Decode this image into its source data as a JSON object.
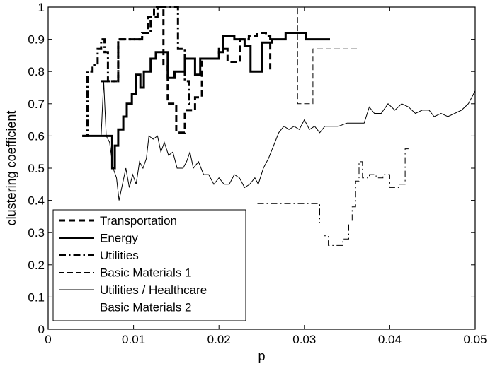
{
  "chart_data": {
    "type": "line",
    "title": "",
    "xlabel": "p",
    "ylabel": "clustering coefficient",
    "xlim": [
      0,
      0.05
    ],
    "ylim": [
      0,
      1
    ],
    "grid": false,
    "legend_position": "bottom-left",
    "x_ticks": [
      0,
      0.01,
      0.02,
      0.03,
      0.04,
      0.05
    ],
    "x_tick_labels": [
      "0",
      "0.01",
      "0.02",
      "0.03",
      "0.04",
      "0.05"
    ],
    "y_ticks": [
      0,
      0.1,
      0.2,
      0.3,
      0.4,
      0.5,
      0.6,
      0.7,
      0.8,
      0.9,
      1
    ],
    "y_tick_labels": [
      "0",
      "0.1",
      "0.2",
      "0.3",
      "0.4",
      "0.5",
      "0.6",
      "0.7",
      "0.8",
      "0.9",
      "1"
    ],
    "series": [
      {
        "name": "Transportation",
        "style": "dashed-thick",
        "points": [
          [
            0.0062,
            0.77
          ],
          [
            0.0082,
            0.77
          ],
          [
            0.0082,
            0.9
          ],
          [
            0.011,
            0.9
          ],
          [
            0.011,
            0.92
          ],
          [
            0.0117,
            0.92
          ],
          [
            0.0117,
            0.97
          ],
          [
            0.0124,
            0.97
          ],
          [
            0.0124,
            1.0
          ],
          [
            0.0135,
            1.0
          ],
          [
            0.0135,
            0.82
          ],
          [
            0.014,
            0.82
          ],
          [
            0.014,
            0.7
          ],
          [
            0.015,
            0.7
          ],
          [
            0.015,
            0.61
          ],
          [
            0.016,
            0.61
          ],
          [
            0.016,
            0.68
          ],
          [
            0.0172,
            0.68
          ],
          [
            0.0172,
            0.72
          ],
          [
            0.018,
            0.72
          ],
          [
            0.018,
            0.84
          ],
          [
            0.02,
            0.84
          ],
          [
            0.02,
            0.87
          ],
          [
            0.021,
            0.87
          ],
          [
            0.021,
            0.83
          ],
          [
            0.0225,
            0.83
          ],
          [
            0.0225,
            0.9
          ],
          [
            0.0235,
            0.9
          ],
          [
            0.0235,
            0.91
          ],
          [
            0.0245,
            0.91
          ],
          [
            0.0245,
            0.92
          ],
          [
            0.0255,
            0.92
          ],
          [
            0.0255,
            0.91
          ],
          [
            0.026,
            0.91
          ],
          [
            0.026,
            0.8
          ]
        ]
      },
      {
        "name": "Energy",
        "style": "solid-thick",
        "points": [
          [
            0.004,
            0.6
          ],
          [
            0.0075,
            0.6
          ],
          [
            0.0075,
            0.5
          ],
          [
            0.0078,
            0.5
          ],
          [
            0.0078,
            0.57
          ],
          [
            0.0082,
            0.57
          ],
          [
            0.0082,
            0.62
          ],
          [
            0.0088,
            0.62
          ],
          [
            0.0088,
            0.66
          ],
          [
            0.0092,
            0.66
          ],
          [
            0.0092,
            0.7
          ],
          [
            0.0098,
            0.7
          ],
          [
            0.0098,
            0.73
          ],
          [
            0.0103,
            0.73
          ],
          [
            0.0103,
            0.79
          ],
          [
            0.0108,
            0.79
          ],
          [
            0.0108,
            0.75
          ],
          [
            0.0112,
            0.75
          ],
          [
            0.0112,
            0.8
          ],
          [
            0.012,
            0.8
          ],
          [
            0.012,
            0.84
          ],
          [
            0.0126,
            0.84
          ],
          [
            0.0126,
            0.86
          ],
          [
            0.014,
            0.86
          ],
          [
            0.014,
            0.78
          ],
          [
            0.0148,
            0.78
          ],
          [
            0.0148,
            0.8
          ],
          [
            0.016,
            0.8
          ],
          [
            0.016,
            0.84
          ],
          [
            0.0172,
            0.84
          ],
          [
            0.0172,
            0.79
          ],
          [
            0.0178,
            0.79
          ],
          [
            0.0178,
            0.84
          ],
          [
            0.02,
            0.84
          ],
          [
            0.02,
            0.86
          ],
          [
            0.0205,
            0.86
          ],
          [
            0.0205,
            0.91
          ],
          [
            0.0218,
            0.91
          ],
          [
            0.0218,
            0.9
          ],
          [
            0.023,
            0.9
          ],
          [
            0.023,
            0.88
          ],
          [
            0.0237,
            0.88
          ],
          [
            0.0237,
            0.8
          ],
          [
            0.025,
            0.8
          ],
          [
            0.025,
            0.89
          ],
          [
            0.0262,
            0.89
          ],
          [
            0.0262,
            0.9
          ],
          [
            0.0278,
            0.9
          ],
          [
            0.0278,
            0.92
          ],
          [
            0.0302,
            0.92
          ],
          [
            0.0302,
            0.9
          ],
          [
            0.033,
            0.9
          ]
        ]
      },
      {
        "name": "Utilities",
        "style": "dashdot-thick",
        "points": [
          [
            0.004,
            0.6
          ],
          [
            0.0046,
            0.6
          ],
          [
            0.0046,
            0.8
          ],
          [
            0.0052,
            0.8
          ],
          [
            0.0052,
            0.82
          ],
          [
            0.0058,
            0.82
          ],
          [
            0.0058,
            0.87
          ],
          [
            0.0062,
            0.87
          ],
          [
            0.0062,
            0.9
          ],
          [
            0.0066,
            0.9
          ],
          [
            0.0066,
            0.86
          ],
          [
            0.007,
            0.86
          ],
          [
            0.007,
            0.77
          ],
          [
            0.0082,
            0.77
          ],
          [
            0.0082,
            0.9
          ],
          [
            0.011,
            0.9
          ],
          [
            0.011,
            0.92
          ],
          [
            0.012,
            0.92
          ],
          [
            0.012,
            0.97
          ],
          [
            0.0128,
            0.97
          ],
          [
            0.0128,
            1.0
          ],
          [
            0.0152,
            1.0
          ],
          [
            0.0152,
            0.87
          ],
          [
            0.016,
            0.87
          ],
          [
            0.016,
            0.77
          ],
          [
            0.0165,
            0.77
          ],
          [
            0.0165,
            0.7
          ],
          [
            0.017,
            0.7
          ]
        ]
      },
      {
        "name": "Basic Materials 1",
        "style": "dashed-thin",
        "points": [
          [
            0.0055,
            1.0
          ],
          [
            0.0292,
            1.0
          ],
          [
            0.0292,
            0.7
          ],
          [
            0.031,
            0.7
          ],
          [
            0.031,
            0.87
          ],
          [
            0.0365,
            0.87
          ]
        ]
      },
      {
        "name": "Utilities / Healthcare",
        "style": "solid-thin",
        "points": [
          [
            0.0062,
            0.6
          ],
          [
            0.0065,
            0.77
          ],
          [
            0.0068,
            0.6
          ],
          [
            0.0072,
            0.58
          ],
          [
            0.0076,
            0.5
          ],
          [
            0.008,
            0.47
          ],
          [
            0.0083,
            0.4
          ],
          [
            0.0087,
            0.45
          ],
          [
            0.0091,
            0.5
          ],
          [
            0.0095,
            0.44
          ],
          [
            0.0099,
            0.48
          ],
          [
            0.0103,
            0.45
          ],
          [
            0.0107,
            0.52
          ],
          [
            0.0111,
            0.5
          ],
          [
            0.0115,
            0.53
          ],
          [
            0.0118,
            0.6
          ],
          [
            0.0123,
            0.59
          ],
          [
            0.0128,
            0.6
          ],
          [
            0.0132,
            0.55
          ],
          [
            0.0136,
            0.58
          ],
          [
            0.0141,
            0.54
          ],
          [
            0.0146,
            0.55
          ],
          [
            0.0151,
            0.5
          ],
          [
            0.0158,
            0.5
          ],
          [
            0.0162,
            0.52
          ],
          [
            0.0166,
            0.55
          ],
          [
            0.017,
            0.5
          ],
          [
            0.0176,
            0.52
          ],
          [
            0.0182,
            0.48
          ],
          [
            0.0188,
            0.48
          ],
          [
            0.0194,
            0.45
          ],
          [
            0.02,
            0.47
          ],
          [
            0.0206,
            0.45
          ],
          [
            0.0212,
            0.45
          ],
          [
            0.0218,
            0.48
          ],
          [
            0.0224,
            0.47
          ],
          [
            0.023,
            0.44
          ],
          [
            0.0236,
            0.45
          ],
          [
            0.0242,
            0.47
          ],
          [
            0.0246,
            0.45
          ],
          [
            0.0252,
            0.5
          ],
          [
            0.0258,
            0.53
          ],
          [
            0.0264,
            0.57
          ],
          [
            0.027,
            0.61
          ],
          [
            0.0276,
            0.63
          ],
          [
            0.0282,
            0.62
          ],
          [
            0.0288,
            0.63
          ],
          [
            0.0294,
            0.62
          ],
          [
            0.03,
            0.65
          ],
          [
            0.0306,
            0.62
          ],
          [
            0.0312,
            0.63
          ],
          [
            0.0318,
            0.61
          ],
          [
            0.0324,
            0.63
          ],
          [
            0.033,
            0.63
          ],
          [
            0.034,
            0.63
          ],
          [
            0.035,
            0.64
          ],
          [
            0.036,
            0.64
          ],
          [
            0.037,
            0.64
          ],
          [
            0.0376,
            0.69
          ],
          [
            0.0382,
            0.67
          ],
          [
            0.039,
            0.67
          ],
          [
            0.0398,
            0.7
          ],
          [
            0.0406,
            0.68
          ],
          [
            0.0414,
            0.7
          ],
          [
            0.0422,
            0.69
          ],
          [
            0.043,
            0.67
          ],
          [
            0.0438,
            0.68
          ],
          [
            0.0446,
            0.68
          ],
          [
            0.0452,
            0.66
          ],
          [
            0.046,
            0.67
          ],
          [
            0.0468,
            0.66
          ],
          [
            0.0476,
            0.67
          ],
          [
            0.0484,
            0.68
          ],
          [
            0.0492,
            0.7
          ],
          [
            0.05,
            0.74
          ]
        ]
      },
      {
        "name": "Basic Materials 2",
        "style": "dashdot-thin",
        "points": [
          [
            0.0245,
            0.39
          ],
          [
            0.0318,
            0.39
          ],
          [
            0.0318,
            0.33
          ],
          [
            0.0323,
            0.33
          ],
          [
            0.0323,
            0.29
          ],
          [
            0.0328,
            0.29
          ],
          [
            0.0328,
            0.26
          ],
          [
            0.0345,
            0.26
          ],
          [
            0.0345,
            0.28
          ],
          [
            0.0352,
            0.28
          ],
          [
            0.0352,
            0.33
          ],
          [
            0.0356,
            0.33
          ],
          [
            0.0356,
            0.38
          ],
          [
            0.036,
            0.38
          ],
          [
            0.036,
            0.46
          ],
          [
            0.0364,
            0.46
          ],
          [
            0.0364,
            0.52
          ],
          [
            0.0368,
            0.52
          ],
          [
            0.0368,
            0.47
          ],
          [
            0.0376,
            0.47
          ],
          [
            0.0376,
            0.48
          ],
          [
            0.0384,
            0.48
          ],
          [
            0.0384,
            0.47
          ],
          [
            0.0392,
            0.47
          ],
          [
            0.0392,
            0.48
          ],
          [
            0.04,
            0.48
          ],
          [
            0.04,
            0.44
          ],
          [
            0.041,
            0.44
          ],
          [
            0.041,
            0.45
          ],
          [
            0.0418,
            0.45
          ],
          [
            0.0418,
            0.56
          ],
          [
            0.0422,
            0.56
          ]
        ]
      }
    ]
  }
}
